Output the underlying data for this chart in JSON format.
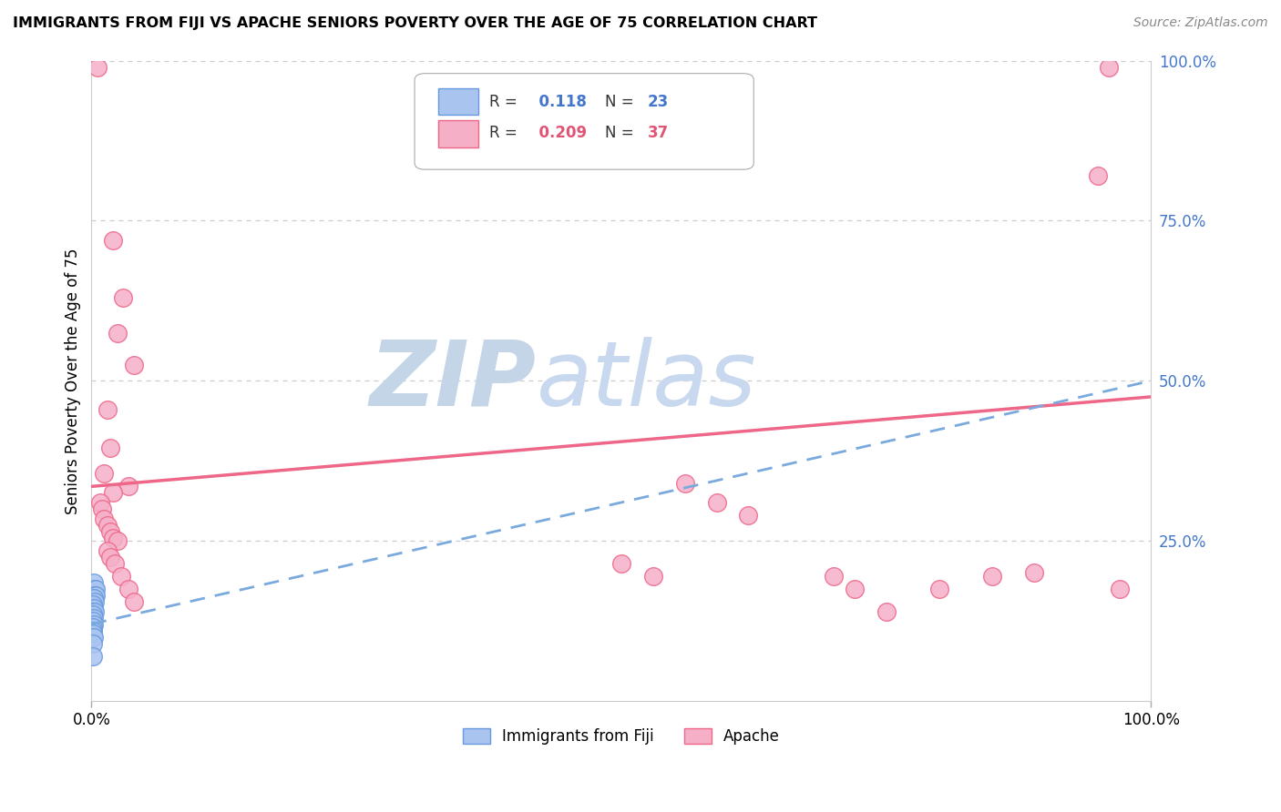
{
  "title": "IMMIGRANTS FROM FIJI VS APACHE SENIORS POVERTY OVER THE AGE OF 75 CORRELATION CHART",
  "source": "Source: ZipAtlas.com",
  "ylabel": "Seniors Poverty Over the Age of 75",
  "xlim": [
    0,
    1
  ],
  "ylim": [
    0,
    1
  ],
  "yticks": [
    0.25,
    0.5,
    0.75,
    1.0
  ],
  "ytick_labels": [
    "25.0%",
    "50.0%",
    "75.0%",
    "100.0%"
  ],
  "legend_fiji_R": "0.118",
  "legend_fiji_N": "23",
  "legend_apache_R": "0.209",
  "legend_apache_N": "37",
  "fiji_color": "#aac4f0",
  "apache_color": "#f5b0c8",
  "fiji_edge_color": "#6699dd",
  "apache_edge_color": "#ee6688",
  "trend_fiji_color": "#7aaadd",
  "trend_apache_color": "#ee6688",
  "watermark_zip_color": "#c8d8ee",
  "watermark_atlas_color": "#c8d8ee",
  "fiji_points": [
    [
      0.002,
      0.185
    ],
    [
      0.003,
      0.175
    ],
    [
      0.001,
      0.165
    ],
    [
      0.004,
      0.175
    ],
    [
      0.003,
      0.165
    ],
    [
      0.002,
      0.155
    ],
    [
      0.004,
      0.165
    ],
    [
      0.002,
      0.16
    ],
    [
      0.003,
      0.155
    ],
    [
      0.001,
      0.15
    ],
    [
      0.002,
      0.145
    ],
    [
      0.001,
      0.14
    ],
    [
      0.003,
      0.14
    ],
    [
      0.001,
      0.135
    ],
    [
      0.002,
      0.13
    ],
    [
      0.001,
      0.125
    ],
    [
      0.002,
      0.12
    ],
    [
      0.001,
      0.115
    ],
    [
      0.001,
      0.11
    ],
    [
      0.001,
      0.105
    ],
    [
      0.002,
      0.1
    ],
    [
      0.001,
      0.09
    ],
    [
      0.001,
      0.07
    ]
  ],
  "apache_points": [
    [
      0.006,
      0.99
    ],
    [
      0.02,
      0.72
    ],
    [
      0.03,
      0.63
    ],
    [
      0.025,
      0.575
    ],
    [
      0.04,
      0.525
    ],
    [
      0.015,
      0.455
    ],
    [
      0.018,
      0.395
    ],
    [
      0.012,
      0.355
    ],
    [
      0.035,
      0.335
    ],
    [
      0.02,
      0.325
    ],
    [
      0.008,
      0.31
    ],
    [
      0.01,
      0.3
    ],
    [
      0.012,
      0.285
    ],
    [
      0.015,
      0.275
    ],
    [
      0.018,
      0.265
    ],
    [
      0.02,
      0.255
    ],
    [
      0.025,
      0.25
    ],
    [
      0.015,
      0.235
    ],
    [
      0.018,
      0.225
    ],
    [
      0.022,
      0.215
    ],
    [
      0.028,
      0.195
    ],
    [
      0.035,
      0.175
    ],
    [
      0.04,
      0.155
    ],
    [
      0.5,
      0.215
    ],
    [
      0.53,
      0.195
    ],
    [
      0.56,
      0.34
    ],
    [
      0.59,
      0.31
    ],
    [
      0.62,
      0.29
    ],
    [
      0.7,
      0.195
    ],
    [
      0.72,
      0.175
    ],
    [
      0.75,
      0.14
    ],
    [
      0.8,
      0.175
    ],
    [
      0.85,
      0.195
    ],
    [
      0.89,
      0.2
    ],
    [
      0.95,
      0.82
    ],
    [
      0.96,
      0.99
    ],
    [
      0.97,
      0.175
    ]
  ],
  "fiji_trend_x": [
    0,
    1.0
  ],
  "fiji_trend_y": [
    0.12,
    0.5
  ],
  "apache_trend_x": [
    0,
    1.0
  ],
  "apache_trend_y": [
    0.335,
    0.475
  ]
}
